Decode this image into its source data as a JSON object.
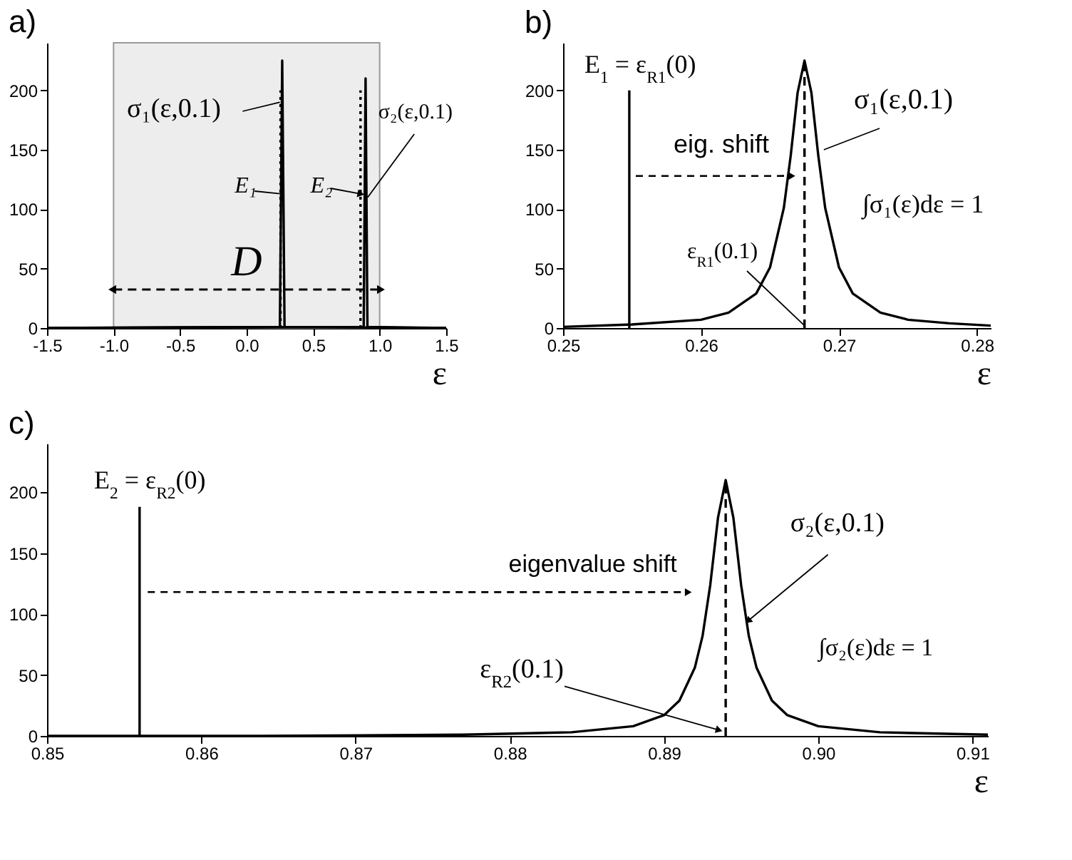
{
  "chart_data": [
    {
      "type": "line",
      "title": "a)",
      "xlabel": "ε",
      "xlim": [
        -1.5,
        1.5
      ],
      "xticks": [
        {
          "value": -1.5,
          "label": "-1.5"
        },
        {
          "value": -1,
          "label": "-1.0"
        },
        {
          "value": -0.5,
          "label": "-0.5"
        },
        {
          "value": 0,
          "label": "0.0"
        },
        {
          "value": 0.5,
          "label": "0.5"
        },
        {
          "value": 1,
          "label": "1.0"
        },
        {
          "value": 1.5,
          "label": "1.5"
        }
      ],
      "ylim": [
        0,
        240
      ],
      "yticks": [
        0,
        50,
        100,
        150,
        200
      ],
      "grid": false,
      "series": [
        {
          "color": "#000000",
          "x": [
            -1.5,
            0.25,
            0.2675,
            0.285,
            1.5
          ],
          "values": [
            0,
            1,
            225,
            1,
            0
          ]
        },
        {
          "color": "#000000",
          "x": [
            -1.5,
            0.88,
            0.894,
            0.908,
            1.5
          ],
          "values": [
            0,
            1,
            210,
            1,
            0
          ]
        },
        {
          "color": "#000000",
          "line_style": "dotted",
          "x": [
            0.255,
            0.255
          ],
          "values": [
            0,
            200
          ]
        },
        {
          "color": "#000000",
          "line_style": "dotted",
          "x": [
            0.856,
            0.856
          ],
          "values": [
            0,
            200
          ]
        }
      ],
      "bands": [
        {
          "axis": "x",
          "from": -1,
          "to": 1,
          "label": "D",
          "color": "#999999"
        }
      ],
      "annotations": [
        {
          "text": "σ₁(ε,0.1)",
          "x": 0.25,
          "y": 190
        },
        {
          "text": "σ₂(ε,0.1)",
          "x": 0.91,
          "y": 110
        },
        {
          "text": "E₁",
          "x": 0.25,
          "y": 113
        },
        {
          "text": "E₂",
          "x": 0.85,
          "y": 113
        }
      ]
    },
    {
      "type": "line",
      "title": "b)",
      "xlabel": "ε",
      "xlim": [
        0.25,
        0.281
      ],
      "xticks": [
        0.25,
        0.26,
        0.27,
        0.28
      ],
      "ylim": [
        0,
        240
      ],
      "yticks": [
        0,
        50,
        100,
        150,
        200
      ],
      "grid": false,
      "series": [
        {
          "color": "#000000",
          "x": [
            0.25,
            0.255,
            0.26,
            0.262,
            0.264,
            0.265,
            0.266,
            0.2665,
            0.267,
            0.2675,
            0.268,
            0.2685,
            0.269,
            0.27,
            0.271,
            0.273,
            0.275,
            0.278,
            0.281
          ],
          "values": [
            1,
            3,
            7,
            13,
            29,
            51,
            101,
            145,
            198,
            225,
            198,
            145,
            101,
            51,
            29,
            13,
            7,
            4,
            2
          ]
        },
        {
          "color": "#000000",
          "x": [
            0.2548,
            0.2548
          ],
          "values": [
            0,
            200
          ]
        },
        {
          "color": "#000000",
          "line_style": "dashed",
          "x": [
            0.2675,
            0.2675
          ],
          "values": [
            0,
            225
          ]
        }
      ],
      "annotations": [
        "E$_{1}$ = ε$_{R1}$(0)",
        {
          "text": "σ₁(ε,0.1)",
          "x": 0.2689,
          "y": 150
        },
        {
          "text": "eig. shift",
          "x": 0.2665,
          "y": 128
        },
        "∫σ₁(ε)dε = 1",
        {
          "text": "ε$_{R1}$(0.1)",
          "x": 0.2675,
          "y": 2
        }
      ]
    },
    {
      "type": "line",
      "title": "c)",
      "xlabel": "ε",
      "xlim": [
        0.85,
        0.911
      ],
      "xticks": [
        0.85,
        0.86,
        0.87,
        0.88,
        0.89,
        {
          "value": 0.9,
          "label": "0.90"
        },
        0.91
      ],
      "ylim": [
        0,
        240
      ],
      "yticks": [
        0,
        50,
        100,
        150,
        200
      ],
      "grid": false,
      "series": [
        {
          "color": "#000000",
          "x": [
            0.85,
            0.864,
            0.877,
            0.884,
            0.888,
            0.89,
            0.891,
            0.892,
            0.8925,
            0.893,
            0.8935,
            0.894,
            0.8945,
            0.895,
            0.8955,
            0.896,
            0.897,
            0.898,
            0.9,
            0.904,
            0.911
          ],
          "values": [
            0,
            0,
            1,
            3,
            8,
            17,
            29,
            56,
            82,
            124,
            179,
            210,
            179,
            124,
            82,
            56,
            29,
            17,
            8,
            3,
            1
          ]
        },
        {
          "color": "#000000",
          "x": [
            0.856,
            0.856
          ],
          "values": [
            0,
            188
          ]
        },
        {
          "color": "#000000",
          "line_style": "dashed",
          "x": [
            0.894,
            0.894
          ],
          "values": [
            0,
            210
          ]
        }
      ],
      "annotations": [
        "E$_{2}$ = ε$_{R2}$(0)",
        {
          "text": "eigenvalue shift",
          "x": 0.8915,
          "y": 118
        },
        {
          "text": "σ₂(ε,0.1)",
          "x": 0.8955,
          "y": 95
        },
        "∫σ₂(ε)dε = 1",
        {
          "text": "ε$_{R2}$(0.1)",
          "x": 0.8935,
          "y": 5
        }
      ]
    }
  ]
}
